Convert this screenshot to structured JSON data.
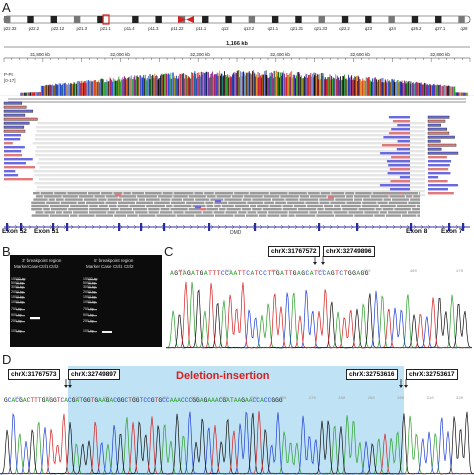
{
  "panels": {
    "a": "A",
    "b": "B",
    "c": "C",
    "d": "D"
  },
  "ideogram": {
    "bands": [
      "p22.32",
      "p22.2",
      "p22.12",
      "p21.3",
      "p21.1",
      "p11.4",
      "p11.3",
      "p11.22",
      "p11.1",
      "q12",
      "q13.2",
      "q21.1",
      "q21.31",
      "q21.33",
      "q22.2",
      "q23",
      "q24",
      "q26.2",
      "q27.1",
      "q28"
    ]
  },
  "ruler": {
    "span": "1,166 kb",
    "ticks": [
      "31,800 kb",
      "32,000 kb",
      "32,200 kb",
      "32,400 kb",
      "32,600 kb",
      "32,800 kb"
    ]
  },
  "track": {
    "label": "P-Pt",
    "range": "[0-17]"
  },
  "gene": {
    "name": "DMD",
    "exons": [
      "Exon 52",
      "Exon 51",
      "Exon 8",
      "Exon 7"
    ]
  },
  "gel": {
    "left_title": "3' breakpoint region",
    "right_title": "5' breakpoint region",
    "lanes_left": [
      "Marker",
      "Case",
      "Ctrl1",
      "Ctrl2"
    ],
    "lanes_right": [
      "Marker",
      "Case",
      "Ctrl1",
      "Ctrl2"
    ],
    "ladder": [
      "15000 bp",
      "5000 bp",
      "3000 bp",
      "2000 bp",
      "1500 bp",
      "1000 bp",
      "750 bp",
      "500 bp",
      "250 bp",
      "100 bp"
    ]
  },
  "panel_c": {
    "pos1": "chrX:31767572",
    "pos2": "chrX:32749896",
    "sequence": "AGTAGATGATTTCCAATTCATCCTTGATTGAGCATCCAGTCTGGAGG",
    "ticks": [
      "410",
      "420",
      "430",
      "440",
      "450",
      "460",
      "470"
    ]
  },
  "panel_d": {
    "pos1": "chrX:31767573",
    "pos2": "chrX:32749897",
    "pos3": "chrX:32753616",
    "pos4": "chrX:32753617",
    "title": "Deletion-insertion",
    "sequence": "GCACGACTTTGAGGTCACGATGGTGAAGACGGCTGGTCCGTGCCAAACCCGGAGAAACGATAAGAACCACCGGG",
    "ticks": [
      "170",
      "180",
      "190",
      "200",
      "210",
      "220",
      "230",
      "240",
      "250",
      "260",
      "270",
      "280",
      "290",
      "300",
      "310",
      "320"
    ]
  },
  "colors": {
    "red": "#d62020",
    "highlight": "#bfe3f5",
    "bar_blue": "#2b2f9e",
    "base_A": "#2ca02c",
    "base_C": "#1f3fd6",
    "base_G": "#111111",
    "base_T": "#d62020"
  }
}
